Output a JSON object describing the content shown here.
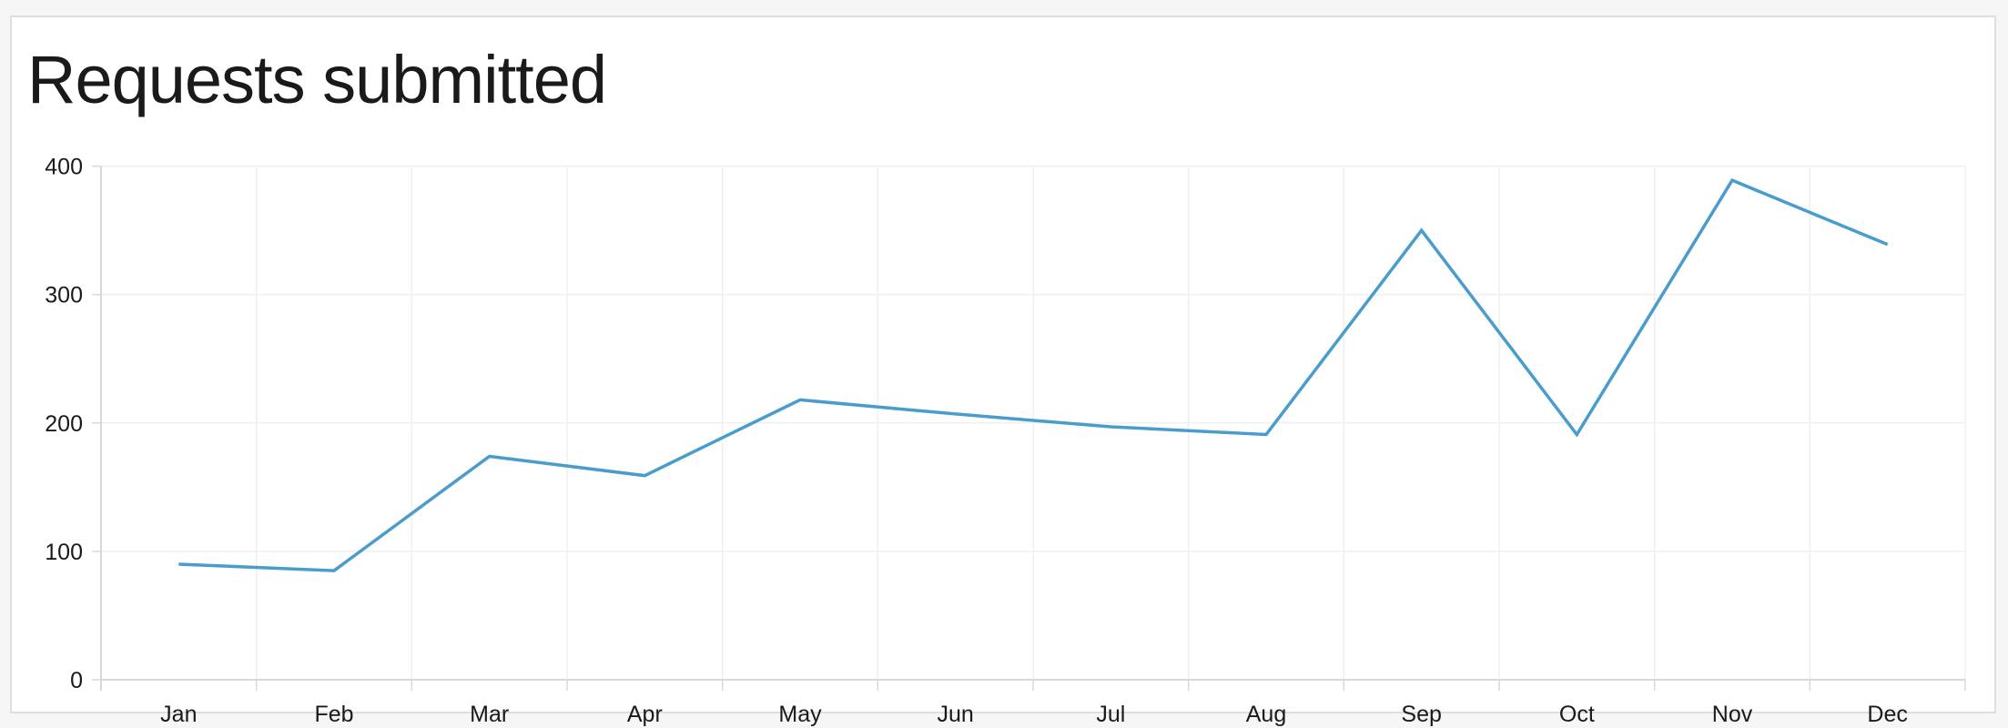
{
  "chart_data": {
    "type": "line",
    "title": "Requests submitted",
    "xlabel": "",
    "ylabel": "",
    "categories": [
      "Jan",
      "Feb",
      "Mar",
      "Apr",
      "May",
      "Jun",
      "Jul",
      "Aug",
      "Sep",
      "Oct",
      "Nov",
      "Dec"
    ],
    "series": [
      {
        "values": [
          90,
          85,
          174,
          159,
          218,
          207,
          197,
          191,
          350,
          191,
          389,
          339
        ],
        "color": "#4a9ccc"
      }
    ],
    "yticks": [
      "0",
      "100",
      "200",
      "300",
      "400"
    ],
    "ylim": [
      0,
      400
    ],
    "grid": true,
    "legend": "none"
  }
}
